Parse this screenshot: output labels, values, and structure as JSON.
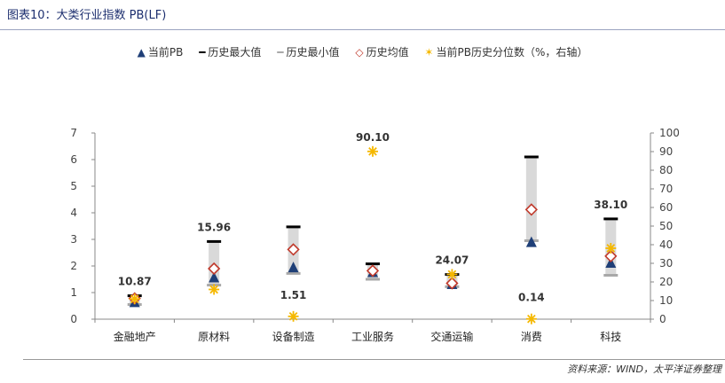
{
  "title": "图表10：大类行业指数 PB(LF)",
  "source": "资料来源：WIND，太平洋证券整理",
  "legend": [
    {
      "label": "当前PB",
      "symbol": "▲",
      "color": "#1f3f77"
    },
    {
      "label": "历史最大值",
      "symbol": "━",
      "color": "#000000"
    },
    {
      "label": "历史最小值",
      "symbol": "━",
      "color": "#a8a8a8"
    },
    {
      "label": "历史均值",
      "symbol": "◇",
      "color": "#c0392b"
    },
    {
      "label": "当前PB历史分位数（%，右轴）",
      "symbol": "✶",
      "color": "#f5b800"
    }
  ],
  "chart_data": {
    "type": "scatter",
    "categories": [
      "金融地产",
      "原材料",
      "设备制造",
      "工业服务",
      "交通运输",
      "消费",
      "科技"
    ],
    "left_axis": {
      "min": 0,
      "max": 7,
      "ticks": [
        0,
        1,
        2,
        3,
        4,
        5,
        6,
        7
      ]
    },
    "right_axis": {
      "min": 0,
      "max": 100,
      "ticks": [
        0,
        10,
        20,
        30,
        40,
        50,
        60,
        70,
        80,
        90,
        100
      ]
    },
    "series": [
      {
        "name": "当前PB",
        "axis": "left",
        "values": [
          0.62,
          1.55,
          1.93,
          1.75,
          1.3,
          2.88,
          2.1
        ]
      },
      {
        "name": "历史最大值",
        "axis": "left",
        "values": [
          0.88,
          2.92,
          3.47,
          2.08,
          1.68,
          6.1,
          3.77
        ]
      },
      {
        "name": "历史最小值",
        "axis": "left",
        "values": [
          0.55,
          1.28,
          1.72,
          1.5,
          1.22,
          2.95,
          1.65
        ]
      },
      {
        "name": "历史均值",
        "axis": "left",
        "values": [
          0.78,
          1.9,
          2.62,
          1.82,
          1.35,
          4.12,
          2.37
        ]
      },
      {
        "name": "当前PB历史分位数（%，右轴）",
        "axis": "right",
        "values": [
          10.87,
          15.96,
          1.51,
          90.1,
          24.07,
          0.14,
          38.1
        ]
      }
    ],
    "data_labels": [
      "10.87",
      "15.96",
      "1.51",
      "90.10",
      "24.07",
      "0.14",
      "38.10"
    ],
    "grid": false,
    "legend_position": "top"
  },
  "colors": {
    "current": "#1f3f77",
    "max": "#000000",
    "min": "#a8a8a8",
    "mean": "#c0392b",
    "percentile": "#f5b800",
    "range_bar": "#d9d9d9"
  }
}
